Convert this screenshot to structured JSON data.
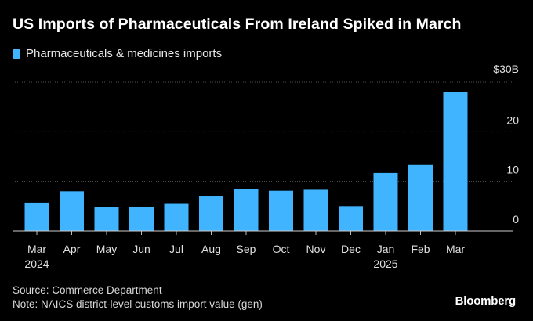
{
  "header": {
    "title": "US Imports of Pharmaceuticals From Ireland Spiked in March",
    "legend_label": "Pharmaceuticals & medicines imports"
  },
  "footer": {
    "source": "Source: Commerce Department",
    "note": "Note: NAICS district-level customs import value (gen)",
    "brand": "Bloomberg"
  },
  "colors": {
    "bar": "#40b4ff",
    "grid": "#555555",
    "background": "#000000"
  },
  "chart_data": {
    "type": "bar",
    "title": "US Imports of Pharmaceuticals From Ireland Spiked in March",
    "xlabel": "",
    "ylabel": "",
    "ylim": [
      0,
      30
    ],
    "yticks": [
      0,
      10,
      20,
      30
    ],
    "ytick_labels": [
      "0",
      "10",
      "20",
      "$30B"
    ],
    "categories": [
      "Mar",
      "Apr",
      "May",
      "Jun",
      "Jul",
      "Aug",
      "Sep",
      "Oct",
      "Nov",
      "Dec",
      "Jan",
      "Feb",
      "Mar"
    ],
    "category_sublabels": [
      "2024",
      "",
      "",
      "",
      "",
      "",
      "",
      "",
      "",
      "",
      "2025",
      "",
      ""
    ],
    "series": [
      {
        "name": "Pharmaceuticals & medicines imports",
        "values": [
          5.7,
          8.0,
          4.8,
          4.9,
          5.6,
          7.1,
          8.5,
          8.1,
          8.3,
          5.0,
          11.7,
          13.3,
          28.0
        ]
      }
    ]
  }
}
